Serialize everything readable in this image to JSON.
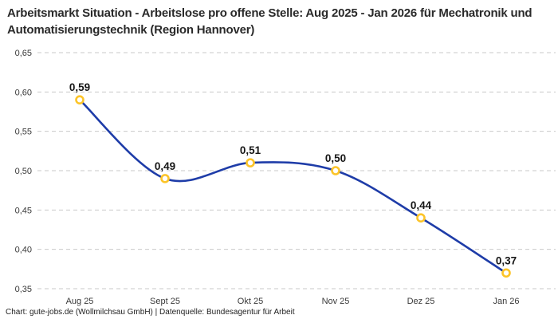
{
  "header": {
    "title": "Arbeitsmarkt Situation - Arbeitslose pro offene Stelle: Aug 2025 - Jan 2026 für Mechatronik und Automatisierungstechnik (Region Hannover)"
  },
  "footer": {
    "text": "Chart: gute-jobs.de (Wollmilchsau GmbH) | Datenquelle: Bundesagentur für Arbeit"
  },
  "chart_data": {
    "type": "line",
    "title": "Arbeitsmarkt Situation - Arbeitslose pro offene Stelle: Aug 2025 - Jan 2026 für Mechatronik und Automatisierungstechnik (Region Hannover)",
    "categories": [
      "Aug 25",
      "Sept 25",
      "Okt 25",
      "Nov 25",
      "Dez 25",
      "Jan 26"
    ],
    "values": [
      0.59,
      0.49,
      0.51,
      0.5,
      0.44,
      0.37
    ],
    "value_labels": [
      "0,59",
      "0,49",
      "0,51",
      "0,50",
      "0,44",
      "0,37"
    ],
    "y_ticks": [
      0.65,
      0.6,
      0.55,
      0.5,
      0.45,
      0.4,
      0.35
    ],
    "y_tick_labels": [
      "0,65",
      "0,60",
      "0,55",
      "0,50",
      "0,45",
      "0,40",
      "0,35"
    ],
    "ylim": [
      0.35,
      0.65
    ],
    "xlabel": "",
    "ylabel": "",
    "legend_position": "none",
    "grid": "horizontal-dashed",
    "smooth": true,
    "colors": {
      "line": "#1e3ca8",
      "marker_stroke": "#fcc428",
      "marker_fill": "#ffffff",
      "gridline": "#c9c9c9",
      "tick_text": "#3a3a3a",
      "point_label_text": "#161616",
      "title_text": "#2a2a2a",
      "background": "#ffffff"
    }
  }
}
